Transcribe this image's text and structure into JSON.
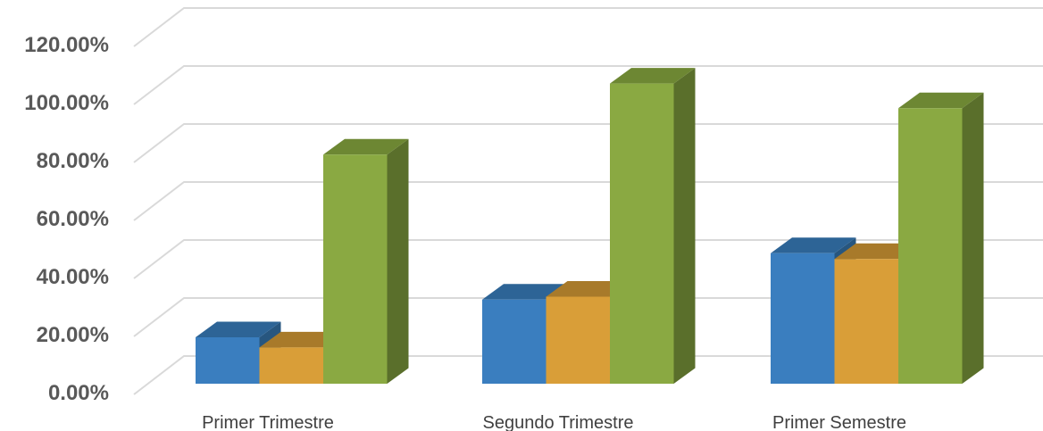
{
  "chart_data": {
    "type": "bar",
    "style": "3d-clustered-column",
    "categories": [
      "Primer Trimestre",
      "Segundo Trimestre",
      "Primer Semestre"
    ],
    "series": [
      {
        "values": [
          16.0,
          29.0,
          45.0
        ]
      },
      {
        "values": [
          12.5,
          30.0,
          43.0
        ]
      },
      {
        "values": [
          79.0,
          103.5,
          95.0
        ]
      }
    ],
    "y_ticks": [
      "0.00%",
      "20.00%",
      "40.00%",
      "60.00%",
      "80.00%",
      "100.00%",
      "120.00%"
    ],
    "ylim": [
      0,
      120
    ],
    "y_unit": "%",
    "grid": true,
    "legend": "none",
    "colors": {
      "series_front": [
        "#3a7ebf",
        "#d99e38",
        "#8aa942"
      ],
      "series_top": [
        "#2d6496",
        "#a87a2a",
        "#6d8733"
      ],
      "series_side": [
        "#27567f",
        "#9a6f26",
        "#5a6f2b"
      ],
      "gridline": "#d9d9d9"
    }
  }
}
